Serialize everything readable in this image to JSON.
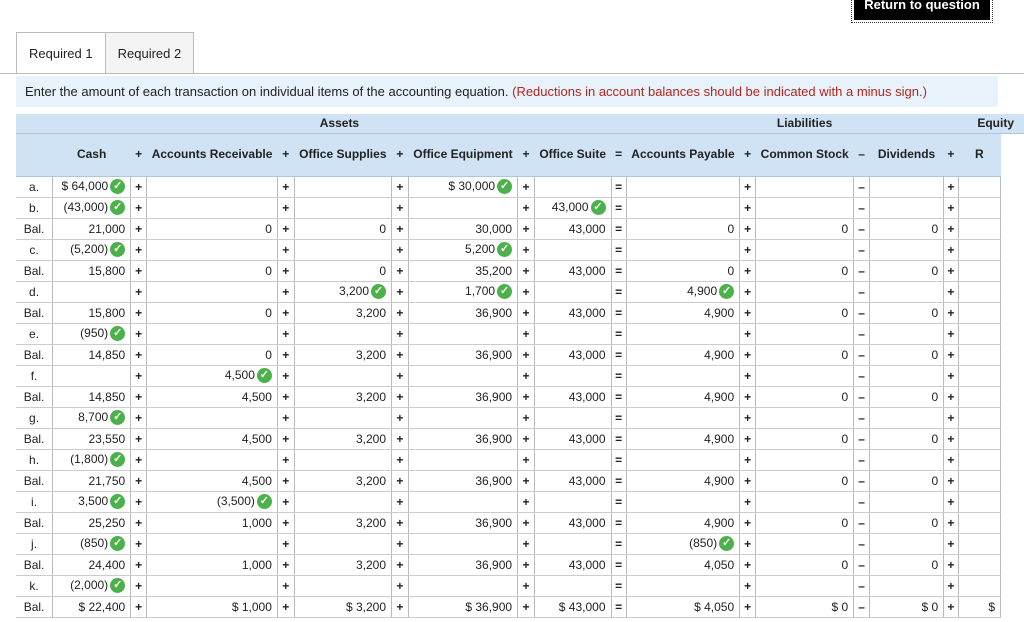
{
  "return_button": "Return to question",
  "tabs": [
    "Required 1",
    "Required 2"
  ],
  "instruction": {
    "main": "Enter the amount of each transaction on individual items of the accounting equation.",
    "note": "(Reductions in account balances should be indicated with a minus sign.)"
  },
  "headers": {
    "assets": "Assets",
    "liabilities": "Liabilities",
    "equity": "Equity",
    "cols": [
      "Cash",
      "Accounts Receivable",
      "Office Supplies",
      "Office Equipment",
      "Office Suite",
      "Accounts Payable",
      "Common Stock",
      "Dividends",
      "R"
    ],
    "ops": [
      "+",
      "+",
      "+",
      "+",
      "=",
      "+",
      "–",
      "+"
    ]
  },
  "row_ops": [
    "+",
    "+",
    "+",
    "+",
    "=",
    "+",
    "–",
    "+"
  ],
  "rows": [
    {
      "label": "a.",
      "cells": [
        "$ 64,000",
        "",
        "",
        "$ 30,000",
        "",
        "",
        "",
        "",
        ""
      ],
      "checks": [
        0,
        3
      ]
    },
    {
      "label": "b.",
      "cells": [
        "(43,000)",
        "",
        "",
        "",
        "43,000",
        "",
        "",
        "",
        ""
      ],
      "checks": [
        0,
        4
      ]
    },
    {
      "label": "Bal.",
      "cells": [
        "21,000",
        "0",
        "0",
        "30,000",
        "43,000",
        "0",
        "0",
        "0",
        ""
      ],
      "checks": []
    },
    {
      "label": "c.",
      "cells": [
        "(5,200)",
        "",
        "",
        "5,200",
        "",
        "",
        "",
        "",
        ""
      ],
      "checks": [
        0,
        3
      ]
    },
    {
      "label": "Bal.",
      "cells": [
        "15,800",
        "0",
        "0",
        "35,200",
        "43,000",
        "0",
        "0",
        "0",
        ""
      ],
      "checks": []
    },
    {
      "label": "d.",
      "cells": [
        "",
        "",
        "3,200",
        "1,700",
        "",
        "4,900",
        "",
        "",
        ""
      ],
      "checks": [
        2,
        3,
        5
      ]
    },
    {
      "label": "Bal.",
      "cells": [
        "15,800",
        "0",
        "3,200",
        "36,900",
        "43,000",
        "4,900",
        "0",
        "0",
        ""
      ],
      "checks": []
    },
    {
      "label": "e.",
      "cells": [
        "(950)",
        "",
        "",
        "",
        "",
        "",
        "",
        "",
        ""
      ],
      "checks": [
        0
      ]
    },
    {
      "label": "Bal.",
      "cells": [
        "14,850",
        "0",
        "3,200",
        "36,900",
        "43,000",
        "4,900",
        "0",
        "0",
        ""
      ],
      "checks": []
    },
    {
      "label": "f.",
      "cells": [
        "",
        "4,500",
        "",
        "",
        "",
        "",
        "",
        "",
        ""
      ],
      "checks": [
        1
      ]
    },
    {
      "label": "Bal.",
      "cells": [
        "14,850",
        "4,500",
        "3,200",
        "36,900",
        "43,000",
        "4,900",
        "0",
        "0",
        ""
      ],
      "checks": []
    },
    {
      "label": "g.",
      "cells": [
        "8,700",
        "",
        "",
        "",
        "",
        "",
        "",
        "",
        ""
      ],
      "checks": [
        0
      ]
    },
    {
      "label": "Bal.",
      "cells": [
        "23,550",
        "4,500",
        "3,200",
        "36,900",
        "43,000",
        "4,900",
        "0",
        "0",
        ""
      ],
      "checks": []
    },
    {
      "label": "h.",
      "cells": [
        "(1,800)",
        "",
        "",
        "",
        "",
        "",
        "",
        "",
        ""
      ],
      "checks": [
        0
      ]
    },
    {
      "label": "Bal.",
      "cells": [
        "21,750",
        "4,500",
        "3,200",
        "36,900",
        "43,000",
        "4,900",
        "0",
        "0",
        ""
      ],
      "checks": []
    },
    {
      "label": "i.",
      "cells": [
        "3,500",
        "(3,500)",
        "",
        "",
        "",
        "",
        "",
        "",
        ""
      ],
      "checks": [
        0,
        1
      ]
    },
    {
      "label": "Bal.",
      "cells": [
        "25,250",
        "1,000",
        "3,200",
        "36,900",
        "43,000",
        "4,900",
        "0",
        "0",
        ""
      ],
      "checks": []
    },
    {
      "label": "j.",
      "cells": [
        "(850)",
        "",
        "",
        "",
        "",
        "(850)",
        "",
        "",
        ""
      ],
      "checks": [
        0,
        5
      ]
    },
    {
      "label": "Bal.",
      "cells": [
        "24,400",
        "1,000",
        "3,200",
        "36,900",
        "43,000",
        "4,050",
        "0",
        "0",
        ""
      ],
      "checks": []
    },
    {
      "label": "k.",
      "cells": [
        "(2,000)",
        "",
        "",
        "",
        "",
        "",
        "",
        "",
        ""
      ],
      "checks": [
        0
      ]
    },
    {
      "label": "Bal.",
      "cells": [
        "$ 22,400",
        "$ 1,000",
        "$ 3,200",
        "$ 36,900",
        "$ 43,000",
        "$ 4,050",
        "$ 0",
        "$ 0",
        "$"
      ],
      "checks": []
    }
  ],
  "check_icon": "✓",
  "colors": {
    "header_bg": "#cfe3f4",
    "instruction_bg": "#e8f2fb",
    "check_green": "#4db14b",
    "note_red": "#b3261e"
  }
}
